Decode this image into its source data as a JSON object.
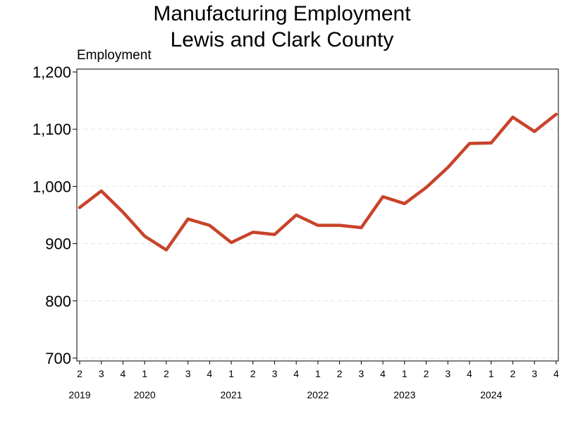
{
  "chart_data": {
    "type": "line",
    "title": [
      "Manufacturing Employment",
      "Lewis and Clark County"
    ],
    "ylabel": "Employment",
    "xlabel": "",
    "ylim": [
      695,
      1205
    ],
    "yticks": [
      700,
      800,
      900,
      1000,
      1100,
      1200
    ],
    "ytick_labels": [
      "700",
      "800",
      "900",
      "1,000",
      "1,100",
      "1,200"
    ],
    "grid": "horizontal dashed",
    "quarter_labels": [
      "2",
      "3",
      "4",
      "1",
      "2",
      "3",
      "4",
      "1",
      "2",
      "3",
      "4",
      "1",
      "2",
      "3",
      "4",
      "1",
      "2",
      "3",
      "4",
      "1",
      "2",
      "3",
      "4"
    ],
    "year_labels": [
      {
        "label": "2019",
        "center_index": 0
      },
      {
        "label": "2020",
        "center_index": 3
      },
      {
        "label": "2021",
        "center_index": 7
      },
      {
        "label": "2022",
        "center_index": 11
      },
      {
        "label": "2023",
        "center_index": 15
      },
      {
        "label": "2024",
        "center_index": 19
      }
    ],
    "series": [
      {
        "color": "#c8432a",
        "values": [
          963,
          992,
          955,
          913,
          889,
          943,
          932,
          902,
          920,
          916,
          950,
          932,
          932,
          928,
          982,
          970,
          998,
          1033,
          1075,
          1076,
          1121,
          1096,
          1126
        ]
      }
    ]
  }
}
